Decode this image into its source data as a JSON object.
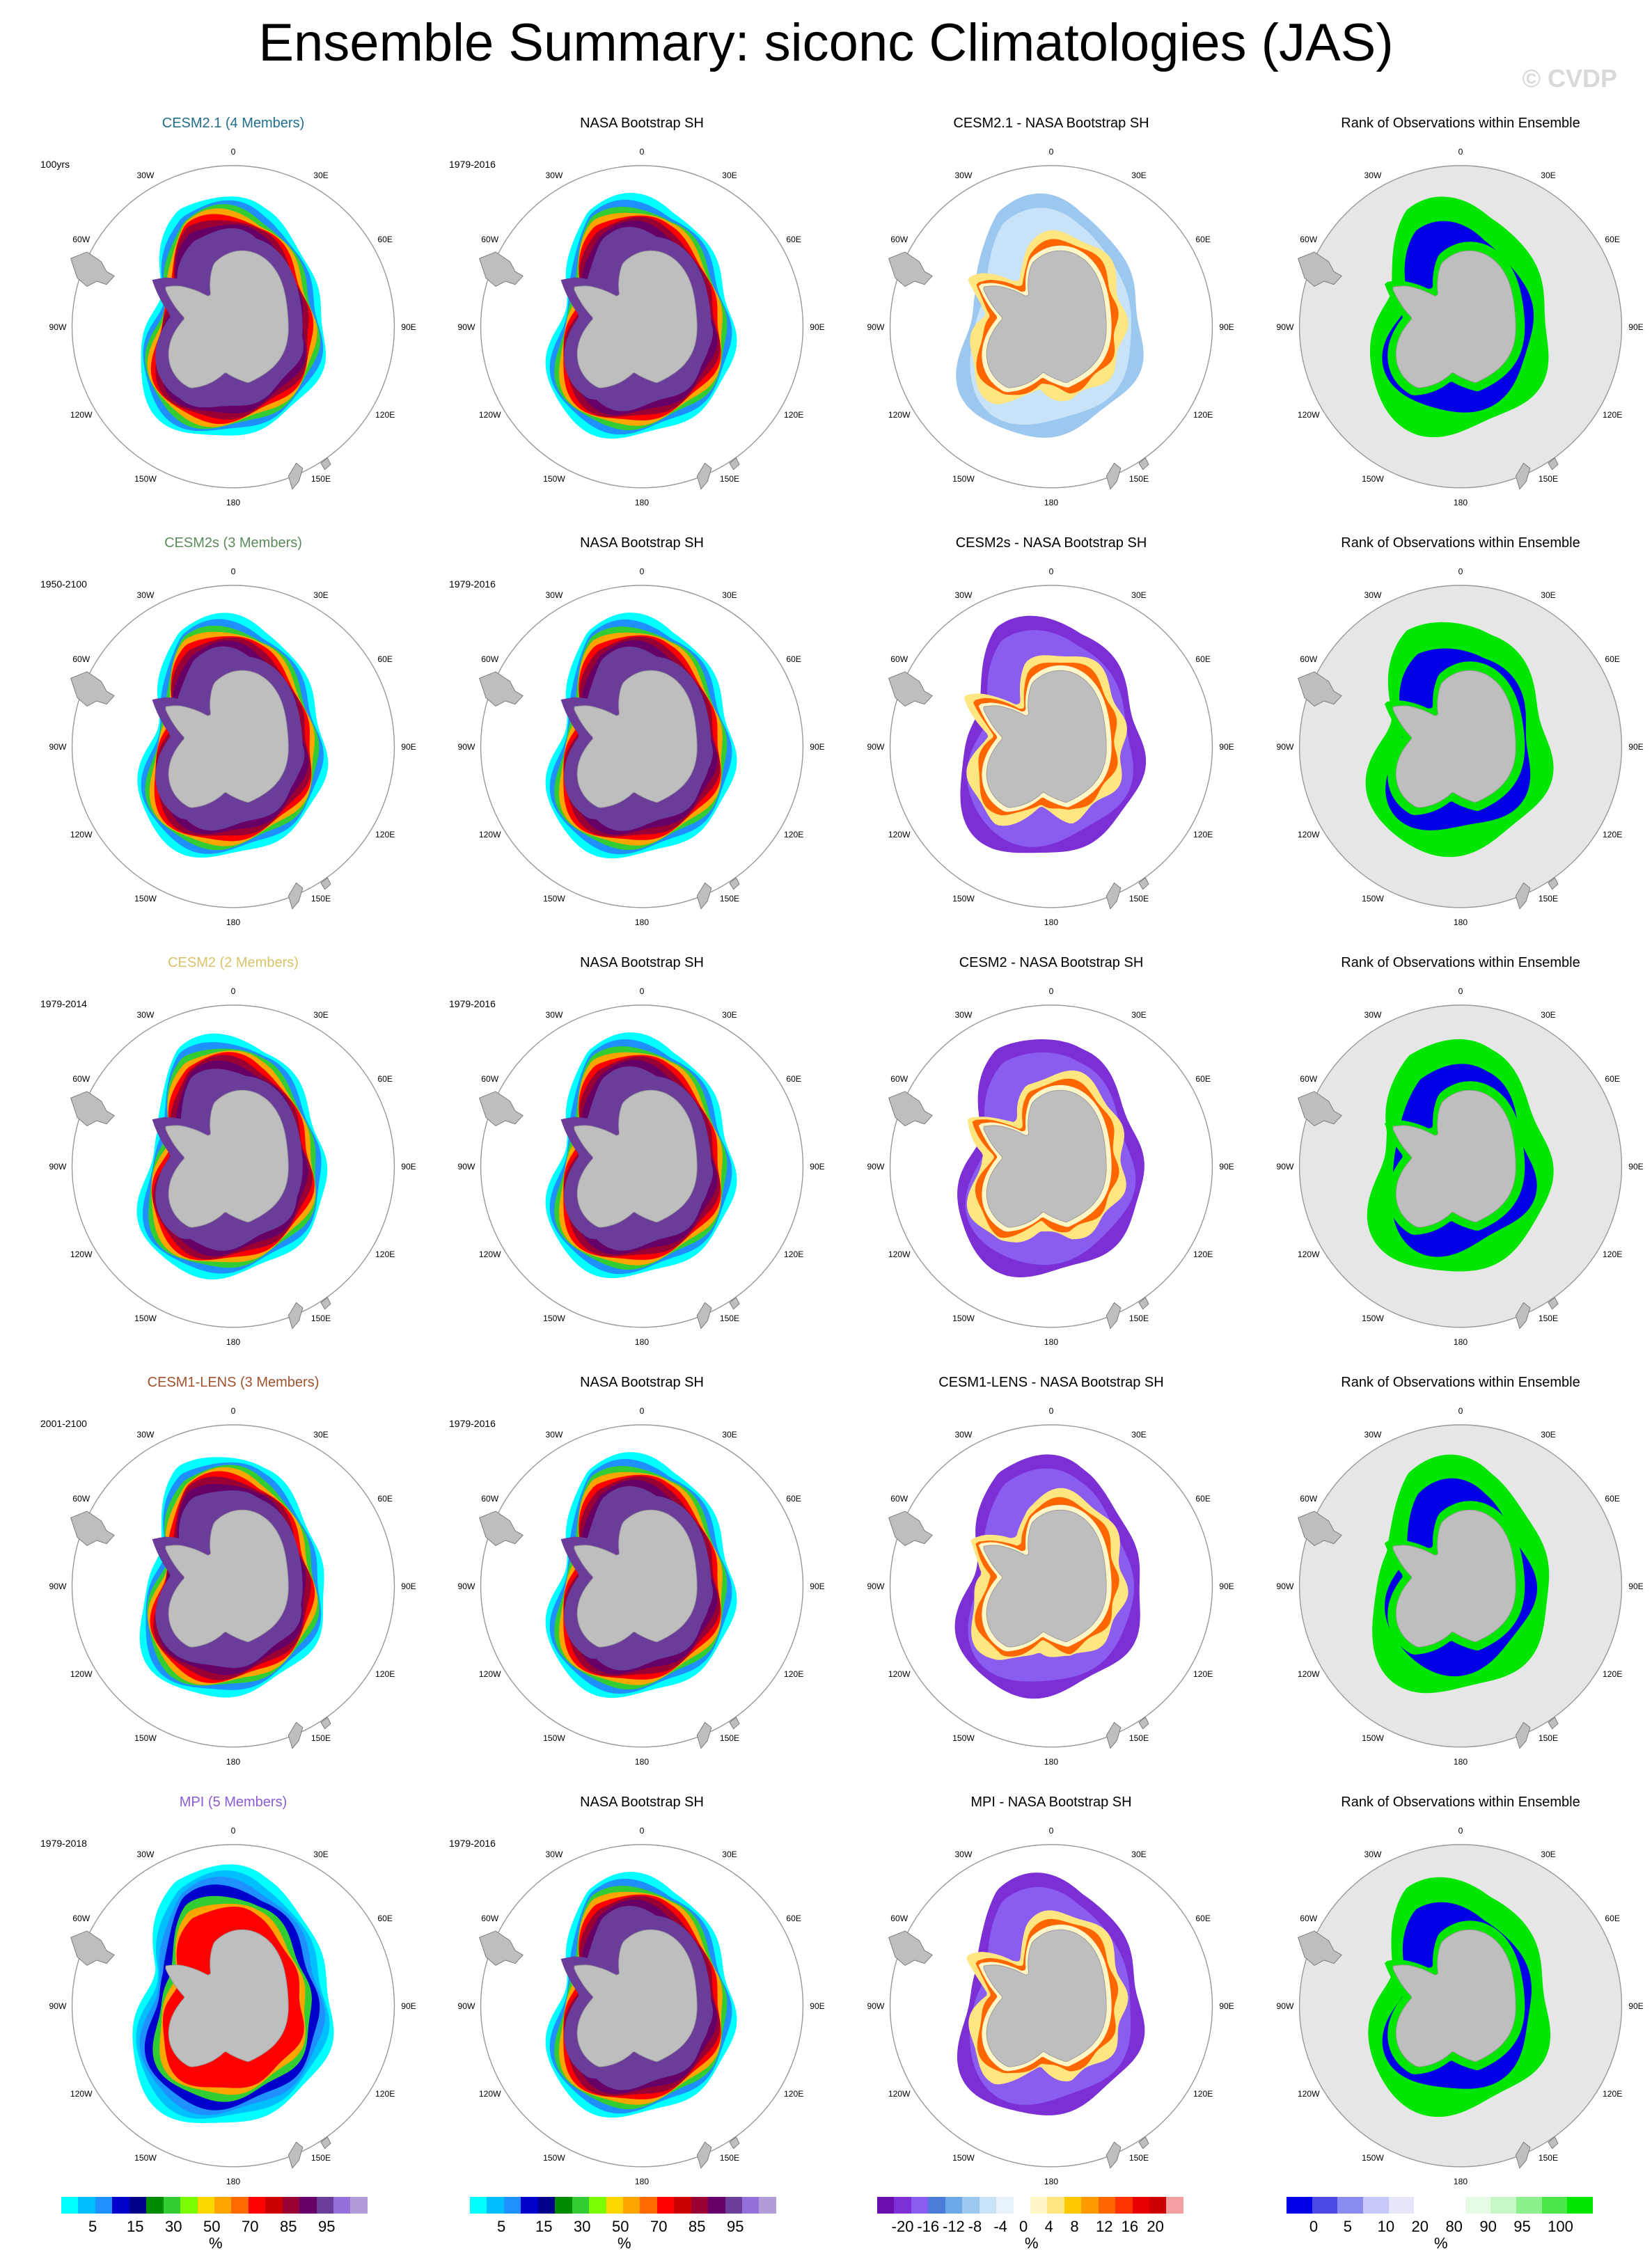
{
  "header": {
    "title": "Ensemble Summary: siconc Climatologies (JAS)",
    "credit": "© CVDP"
  },
  "rows": [
    {
      "model_title": "CESM2.1 (4 Members)",
      "model_color": "#1f6e8c",
      "model_years": "100yrs",
      "obs_title": "NASA Bootstrap SH",
      "obs_years": "1979-2016",
      "diff_title": "CESM2.1 - NASA Bootstrap SH",
      "rank_title": "Rank of Observations within Ensemble"
    },
    {
      "model_title": "CESM2s (3 Members)",
      "model_color": "#5c8a5c",
      "model_years": "1950-2100",
      "obs_title": "NASA Bootstrap SH",
      "obs_years": "1979-2016",
      "diff_title": "CESM2s - NASA Bootstrap SH",
      "rank_title": "Rank of Observations within Ensemble"
    },
    {
      "model_title": "CESM2 (2 Members)",
      "model_color": "#d9c36a",
      "model_years": "1979-2014",
      "obs_title": "NASA Bootstrap SH",
      "obs_years": "1979-2016",
      "diff_title": "CESM2 - NASA Bootstrap SH",
      "rank_title": "Rank of Observations within Ensemble"
    },
    {
      "model_title": "CESM1-LENS (3 Members)",
      "model_color": "#a0522d",
      "model_years": "2001-2100",
      "obs_title": "NASA Bootstrap SH",
      "obs_years": "1979-2016",
      "diff_title": "CESM1-LENS - NASA Bootstrap SH",
      "rank_title": "Rank of Observations within Ensemble"
    },
    {
      "model_title": "MPI (5 Members)",
      "model_color": "#8a5cd6",
      "model_years": "1979-2018",
      "obs_title": "NASA Bootstrap SH",
      "obs_years": "1979-2016",
      "diff_title": "MPI - NASA Bootstrap SH",
      "rank_title": "Rank of Observations within Ensemble"
    }
  ],
  "map_labels": {
    "lon_labels": [
      "0",
      "30E",
      "60E",
      "90E",
      "120E",
      "150E",
      "180",
      "150W",
      "120W",
      "90W",
      "60W",
      "30W"
    ]
  },
  "colorbars": {
    "climatology": {
      "colors": [
        "#00ffff",
        "#00bfff",
        "#1e90ff",
        "#0000cd",
        "#00008b",
        "#008b00",
        "#32cd32",
        "#7cfc00",
        "#ffd700",
        "#ffa500",
        "#ff6a00",
        "#ff0000",
        "#cc0000",
        "#990033",
        "#660066",
        "#6a3d9a",
        "#9370db",
        "#b19cd9"
      ],
      "tick_labels": [
        "5",
        "15",
        "30",
        "50",
        "70",
        "85",
        "95"
      ],
      "unit": "%"
    },
    "difference": {
      "colors": [
        "#6a0dad",
        "#7b2fd4",
        "#8a5cf0",
        "#4b7bd8",
        "#6aa8e8",
        "#9cc8f0",
        "#c8e2f8",
        "#e8f3fc",
        "#ffffff",
        "#fff6c8",
        "#ffe680",
        "#ffc800",
        "#ff9900",
        "#ff6600",
        "#ff3300",
        "#e60000",
        "#cc0000",
        "#f4a0a0"
      ],
      "tick_labels": [
        "-20",
        "-16",
        "-12",
        "-8",
        "-4",
        "0",
        "4",
        "8",
        "12",
        "16",
        "20"
      ],
      "unit": "%"
    },
    "rank": {
      "colors": [
        "#0000e6",
        "#4a4ae6",
        "#8c8cf0",
        "#c8c8f8",
        "#e6e6fa",
        "#ffffff",
        "#ffffff",
        "#e6fae6",
        "#c8f8c8",
        "#8cf08c",
        "#4ae64a",
        "#00e600"
      ],
      "tick_labels": [
        "0",
        "5",
        "10",
        "20",
        "80",
        "90",
        "95",
        "100"
      ],
      "unit": "%"
    }
  }
}
